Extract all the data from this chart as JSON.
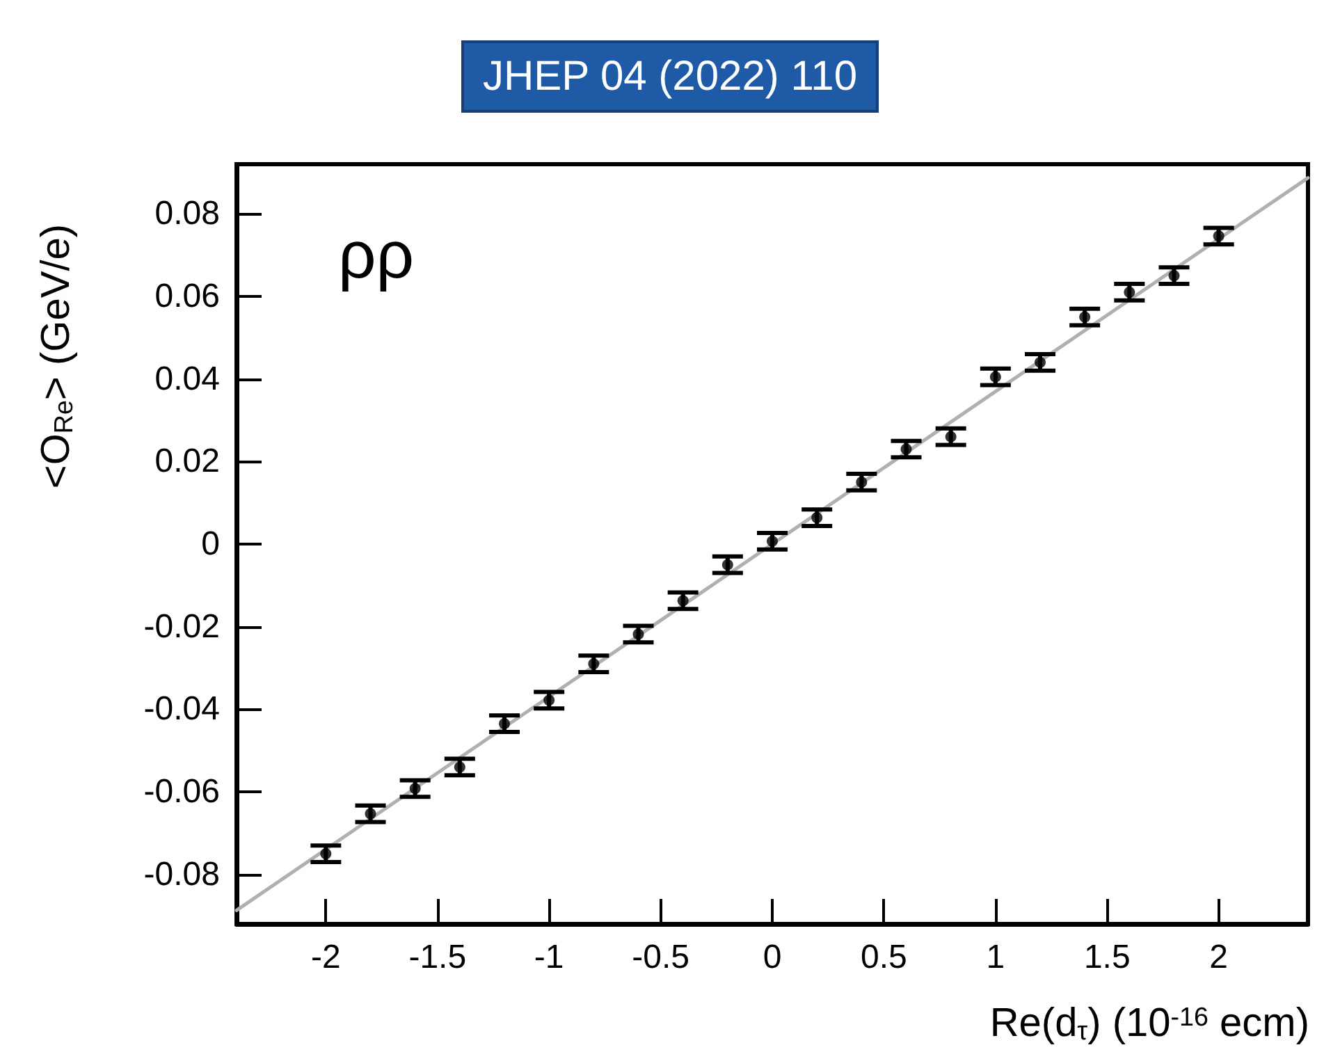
{
  "chart_data": {
    "type": "scatter",
    "title": "JHEP 04 (2022) 110",
    "xlabel": "Re(d$_{τ}$) (10$^{-16}$ ecm)",
    "ylabel": "<O$_{Re}$> (GeV/e)",
    "annotations": [
      "ρρ"
    ],
    "x": [
      -2,
      -1.8,
      -1.6,
      -1.4,
      -1.2,
      -1,
      -0.8,
      -0.6,
      -0.4,
      -0.2,
      0,
      0.2,
      0.4,
      0.6,
      0.8,
      1,
      1.2,
      1.4,
      1.6,
      1.8,
      2
    ],
    "series": [
      {
        "color": "#000000",
        "marker": "circle",
        "values": [
          -0.075,
          -0.0653,
          -0.0592,
          -0.054,
          -0.0435,
          -0.0378,
          -0.029,
          -0.0218,
          -0.0137,
          -0.005,
          0.0007,
          0.0064,
          0.015,
          0.023,
          0.026,
          0.0405,
          0.044,
          0.055,
          0.061,
          0.065,
          0.0746
        ],
        "errors": [
          0.002,
          0.002,
          0.002,
          0.002,
          0.002,
          0.002,
          0.002,
          0.002,
          0.002,
          0.002,
          0.002,
          0.002,
          0.002,
          0.002,
          0.002,
          0.002,
          0.002,
          0.002,
          0.002,
          0.002,
          0.002
        ]
      },
      {
        "type": "line",
        "color": "#b0b0b0",
        "x": [
          -2.4,
          2.4
        ],
        "values": [
          -0.0887,
          0.0887
        ]
      }
    ],
    "xlim": [
      -2.4,
      2.4
    ],
    "ylim": [
      -0.092,
      0.092
    ],
    "xticks": [
      -2,
      -1.5,
      -1,
      -0.5,
      0,
      0.5,
      1,
      1.5,
      2
    ],
    "yticks": [
      -0.08,
      -0.06,
      -0.04,
      -0.02,
      0,
      0.02,
      0.04,
      0.06,
      0.08
    ]
  }
}
